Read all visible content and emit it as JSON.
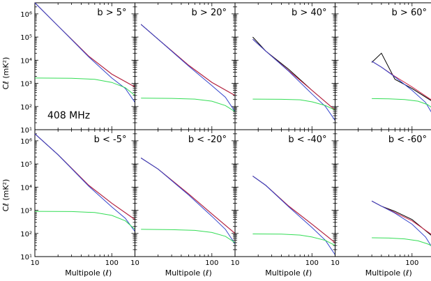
{
  "figure": {
    "ylabel": "Cℓ (mK²)",
    "xlabel": "Multipole (ℓ)",
    "frequency_label": "408 MHz",
    "y_tick_labels": [
      "10¹",
      "10²",
      "10³",
      "10⁴",
      "10⁵",
      "10⁶"
    ],
    "x_tick_labels": [
      "10",
      "100"
    ],
    "colors": {
      "data": "#000000",
      "red_fit": "#cc2244",
      "blue_fit": "#3344cc",
      "noise": "#33dd55",
      "frame": "#000000"
    }
  },
  "chart_data": [
    {
      "type": "line",
      "panel_label": "b > 5°",
      "x_range": [
        10,
        200
      ],
      "y_range": [
        10,
        3000000
      ],
      "xscale": "log",
      "yscale": "log",
      "series": [
        {
          "kind": "data",
          "x": [
            10,
            20,
            50,
            100,
            200
          ],
          "y": [
            3000000,
            300000,
            15000,
            2500,
            700
          ]
        },
        {
          "kind": "red_fit",
          "x": [
            10,
            20,
            50,
            100,
            200
          ],
          "y": [
            3000000,
            300000,
            15000,
            2500,
            700
          ]
        },
        {
          "kind": "blue_fit",
          "x": [
            10,
            20,
            50,
            100,
            150,
            200
          ],
          "y": [
            3000000,
            300000,
            14000,
            1700,
            600,
            150
          ]
        },
        {
          "kind": "green",
          "x": [
            10,
            30,
            60,
            100,
            150,
            200
          ],
          "y": [
            1700,
            1650,
            1500,
            1100,
            650,
            300
          ]
        }
      ]
    },
    {
      "type": "line",
      "panel_label": "b > 20°",
      "x_range": [
        10,
        200
      ],
      "y_range": [
        10,
        3000000
      ],
      "xscale": "log",
      "yscale": "log",
      "series": [
        {
          "kind": "data",
          "x": [
            12,
            20,
            50,
            100,
            200
          ],
          "y": [
            350000,
            80000,
            6000,
            1100,
            300
          ]
        },
        {
          "kind": "red_fit",
          "x": [
            12,
            20,
            50,
            100,
            200
          ],
          "y": [
            350000,
            80000,
            6000,
            1100,
            300
          ]
        },
        {
          "kind": "blue_fit",
          "x": [
            12,
            20,
            50,
            100,
            150,
            200
          ],
          "y": [
            350000,
            80000,
            5500,
            800,
            250,
            60
          ]
        },
        {
          "kind": "green",
          "x": [
            12,
            30,
            60,
            100,
            150,
            200
          ],
          "y": [
            230,
            225,
            210,
            170,
            110,
            60
          ]
        }
      ]
    },
    {
      "type": "line",
      "panel_label": "b > 40°",
      "x_range": [
        10,
        200
      ],
      "y_range": [
        10,
        3000000
      ],
      "xscale": "log",
      "yscale": "log",
      "series": [
        {
          "kind": "data",
          "x": [
            17,
            25,
            50,
            100,
            200
          ],
          "y": [
            100000,
            25000,
            4000,
            500,
            70
          ]
        },
        {
          "kind": "red_fit",
          "x": [
            17,
            25,
            50,
            100,
            200
          ],
          "y": [
            80000,
            25000,
            3500,
            500,
            70
          ]
        },
        {
          "kind": "blue_fit",
          "x": [
            17,
            25,
            50,
            100,
            150,
            200
          ],
          "y": [
            80000,
            25000,
            3300,
            350,
            100,
            25
          ]
        },
        {
          "kind": "green",
          "x": [
            17,
            40,
            70,
            100,
            150,
            200
          ],
          "y": [
            210,
            205,
            195,
            160,
            110,
            70
          ]
        }
      ]
    },
    {
      "type": "line",
      "panel_label": "b > 60°",
      "x_range": [
        10,
        200
      ],
      "y_range": [
        10,
        3000000
      ],
      "xscale": "log",
      "yscale": "log",
      "series": [
        {
          "kind": "data",
          "x": [
            30,
            40,
            60,
            100,
            200
          ],
          "y": [
            8000,
            20000,
            1500,
            600,
            140
          ]
        },
        {
          "kind": "red_fit",
          "x": [
            30,
            40,
            60,
            100,
            200
          ],
          "y": [
            9000,
            5000,
            2000,
            700,
            150
          ]
        },
        {
          "kind": "blue_fit",
          "x": [
            30,
            40,
            60,
            100,
            150,
            200
          ],
          "y": [
            9000,
            5000,
            1900,
            500,
            150,
            30
          ]
        },
        {
          "kind": "green",
          "x": [
            30,
            50,
            80,
            120,
            160,
            200
          ],
          "y": [
            220,
            215,
            200,
            170,
            120,
            70
          ]
        }
      ]
    },
    {
      "type": "line",
      "panel_label": "b < -5°",
      "x_range": [
        10,
        200
      ],
      "y_range": [
        10,
        3000000
      ],
      "xscale": "log",
      "yscale": "log",
      "series": [
        {
          "kind": "data",
          "x": [
            10,
            20,
            50,
            100,
            200
          ],
          "y": [
            2000000,
            250000,
            12000,
            2000,
            400
          ]
        },
        {
          "kind": "red_fit",
          "x": [
            10,
            20,
            50,
            100,
            200
          ],
          "y": [
            2000000,
            250000,
            12000,
            2000,
            400
          ]
        },
        {
          "kind": "blue_fit",
          "x": [
            10,
            20,
            50,
            100,
            150,
            200
          ],
          "y": [
            2000000,
            250000,
            11000,
            1400,
            450,
            120
          ]
        },
        {
          "kind": "green",
          "x": [
            10,
            30,
            60,
            100,
            150,
            200
          ],
          "y": [
            900,
            880,
            800,
            600,
            350,
            150
          ]
        }
      ]
    },
    {
      "type": "line",
      "panel_label": "b < -20°",
      "x_range": [
        10,
        200
      ],
      "y_range": [
        10,
        3000000
      ],
      "xscale": "log",
      "yscale": "log",
      "series": [
        {
          "kind": "data",
          "x": [
            12,
            20,
            50,
            100,
            200
          ],
          "y": [
            180000,
            60000,
            5000,
            700,
            100
          ]
        },
        {
          "kind": "red_fit",
          "x": [
            12,
            20,
            50,
            100,
            200
          ],
          "y": [
            180000,
            60000,
            5000,
            700,
            100
          ]
        },
        {
          "kind": "blue_fit",
          "x": [
            12,
            20,
            50,
            100,
            150,
            200
          ],
          "y": [
            180000,
            60000,
            4500,
            550,
            150,
            35
          ]
        },
        {
          "kind": "green",
          "x": [
            12,
            30,
            60,
            100,
            150,
            200
          ],
          "y": [
            150,
            145,
            135,
            110,
            75,
            40
          ]
        }
      ]
    },
    {
      "type": "line",
      "panel_label": "b < -40°",
      "x_range": [
        10,
        200
      ],
      "y_range": [
        10,
        3000000
      ],
      "xscale": "log",
      "yscale": "log",
      "series": [
        {
          "kind": "data",
          "x": [
            17,
            25,
            50,
            100,
            200
          ],
          "y": [
            30000,
            12000,
            1500,
            250,
            40
          ]
        },
        {
          "kind": "red_fit",
          "x": [
            17,
            25,
            50,
            100,
            200
          ],
          "y": [
            30000,
            12000,
            1500,
            250,
            40
          ]
        },
        {
          "kind": "blue_fit",
          "x": [
            17,
            25,
            50,
            100,
            150,
            200
          ],
          "y": [
            30000,
            12000,
            1400,
            180,
            50,
            12
          ]
        },
        {
          "kind": "green",
          "x": [
            17,
            40,
            70,
            100,
            150,
            200
          ],
          "y": [
            95,
            93,
            85,
            70,
            50,
            30
          ]
        }
      ]
    },
    {
      "type": "line",
      "panel_label": "b < -60°",
      "x_range": [
        10,
        200
      ],
      "y_range": [
        10,
        3000000
      ],
      "xscale": "log",
      "yscale": "log",
      "series": [
        {
          "kind": "data",
          "x": [
            30,
            40,
            60,
            100,
            200
          ],
          "y": [
            2500,
            1500,
            900,
            400,
            60
          ]
        },
        {
          "kind": "red_fit",
          "x": [
            30,
            40,
            60,
            100,
            200
          ],
          "y": [
            2500,
            1500,
            800,
            350,
            70
          ]
        },
        {
          "kind": "blue_fit",
          "x": [
            30,
            40,
            60,
            100,
            150,
            200
          ],
          "y": [
            2500,
            1500,
            750,
            250,
            70,
            15
          ]
        },
        {
          "kind": "green",
          "x": [
            30,
            50,
            80,
            120,
            160,
            200
          ],
          "y": [
            65,
            63,
            58,
            48,
            35,
            25
          ]
        }
      ]
    }
  ]
}
